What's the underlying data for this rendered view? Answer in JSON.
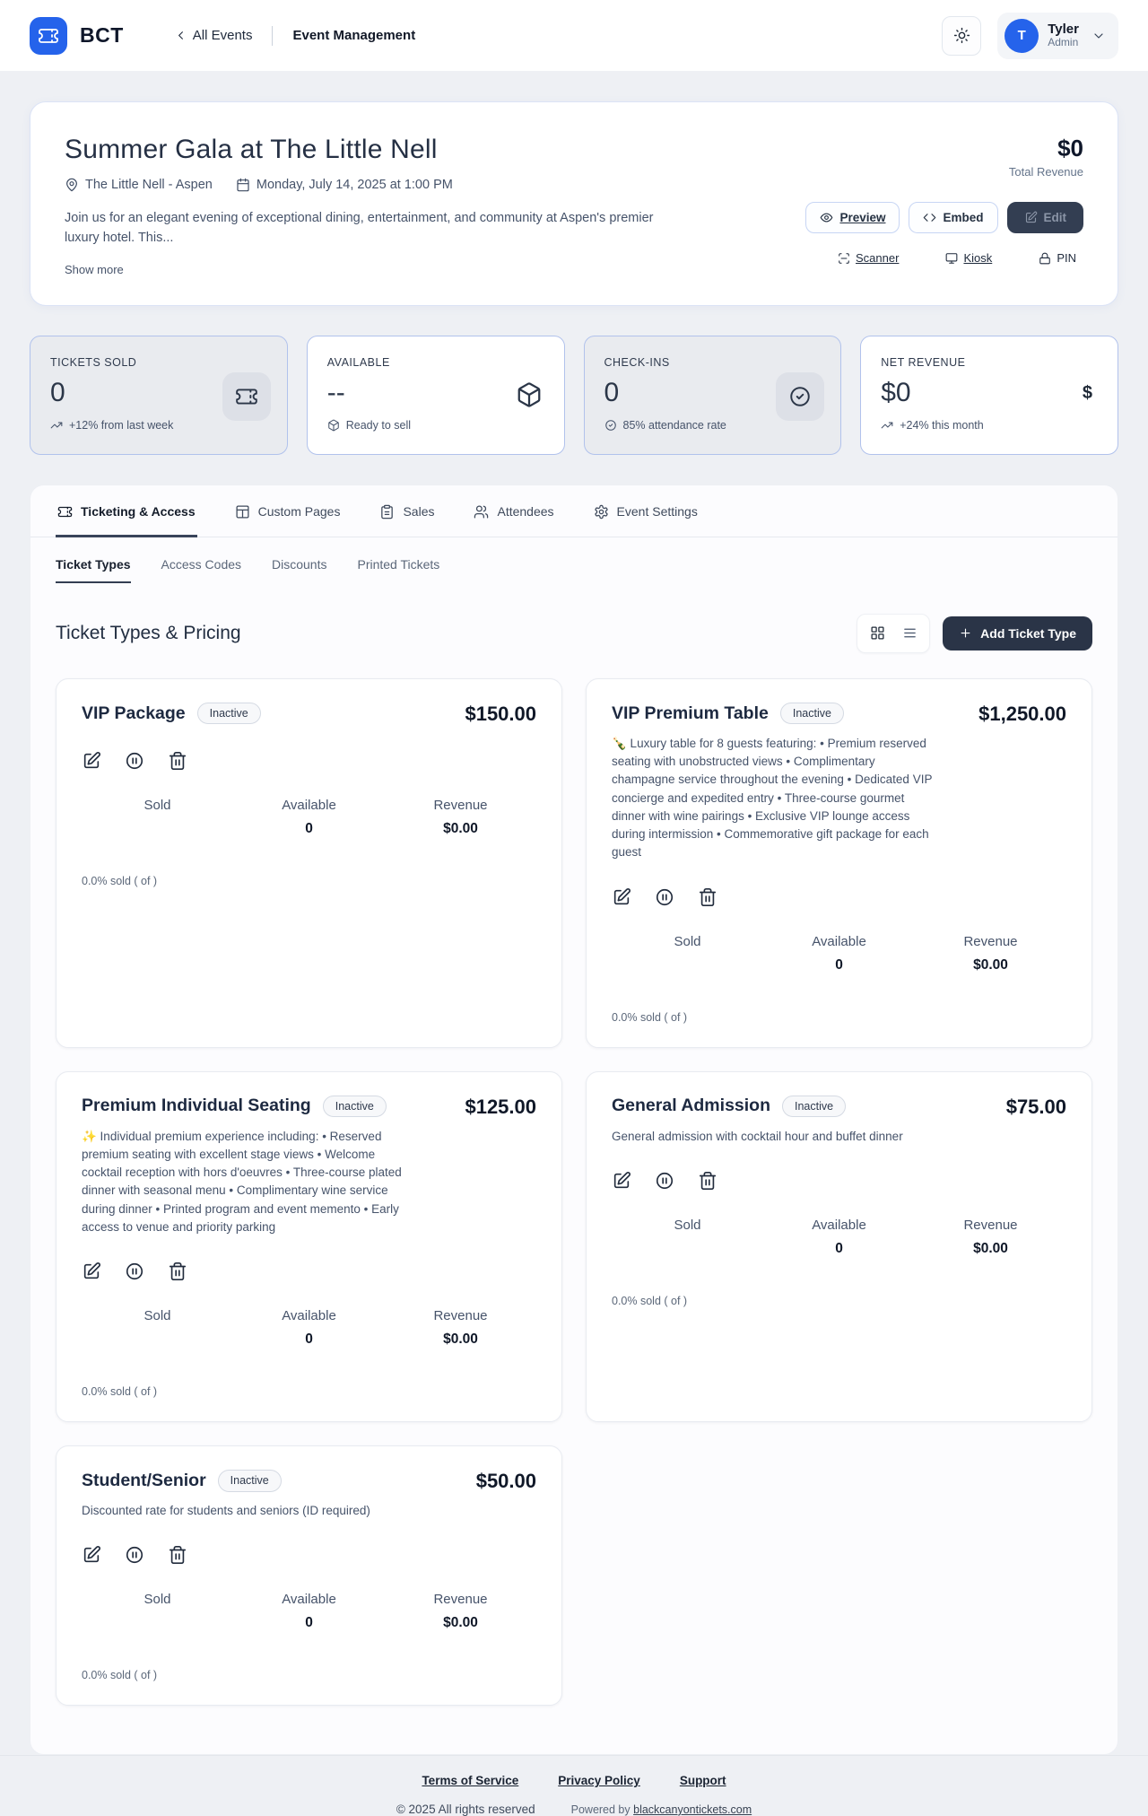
{
  "header": {
    "brand": "BCT",
    "back_label": "All Events",
    "title": "Event Management",
    "user": {
      "initial": "T",
      "name": "Tyler",
      "role": "Admin"
    }
  },
  "event": {
    "title": "Summer Gala at The Little Nell",
    "venue": "The Little Nell - Aspen",
    "datetime": "Monday, July 14, 2025 at 1:00 PM",
    "description": "Join us for an elegant evening of exceptional dining, entertainment, and community at Aspen's premier luxury hotel. This...",
    "show_more": "Show more",
    "total_revenue_value": "$0",
    "total_revenue_label": "Total Revenue",
    "actions": {
      "preview": "Preview",
      "embed": "Embed",
      "edit": "Edit",
      "scanner": "Scanner",
      "kiosk": "Kiosk",
      "pin": "PIN"
    }
  },
  "stats": [
    {
      "label": "TICKETS SOLD",
      "value": "0",
      "sub": "+12% from last week",
      "icon": "ticket-icon"
    },
    {
      "label": "AVAILABLE",
      "value": "--",
      "sub": "Ready to sell",
      "icon": "box-icon"
    },
    {
      "label": "CHECK-INS",
      "value": "0",
      "sub": "85% attendance rate",
      "icon": "check-circle-icon"
    },
    {
      "label": "NET REVENUE",
      "value": "$0",
      "sub": "+24% this month",
      "icon": "dollar-icon"
    }
  ],
  "tabs": [
    {
      "label": "Ticketing & Access",
      "icon": "ticket-icon",
      "active": true
    },
    {
      "label": "Custom Pages",
      "icon": "layout-icon",
      "active": false
    },
    {
      "label": "Sales",
      "icon": "clipboard-icon",
      "active": false
    },
    {
      "label": "Attendees",
      "icon": "users-icon",
      "active": false
    },
    {
      "label": "Event Settings",
      "icon": "gear-icon",
      "active": false
    }
  ],
  "subtabs": [
    {
      "label": "Ticket Types",
      "active": true
    },
    {
      "label": "Access Codes",
      "active": false
    },
    {
      "label": "Discounts",
      "active": false
    },
    {
      "label": "Printed Tickets",
      "active": false
    }
  ],
  "section": {
    "title": "Ticket Types & Pricing",
    "add_button": "Add Ticket Type"
  },
  "ticket_labels": {
    "sold": "Sold",
    "available": "Available",
    "revenue": "Revenue"
  },
  "tickets": [
    {
      "name": "VIP Package",
      "status": "Inactive",
      "price": "$150.00",
      "description": "",
      "sold": "",
      "available": "0",
      "revenue": "$0.00",
      "percent": "0.0% sold ( of )"
    },
    {
      "name": "VIP Premium Table",
      "status": "Inactive",
      "price": "$1,250.00",
      "description": "🍾 Luxury table for 8 guests featuring: • Premium reserved seating with unobstructed views • Complimentary champagne service throughout the evening • Dedicated VIP concierge and expedited entry • Three-course gourmet dinner with wine pairings • Exclusive VIP lounge access during intermission • Commemorative gift package for each guest",
      "sold": "",
      "available": "0",
      "revenue": "$0.00",
      "percent": "0.0% sold ( of )"
    },
    {
      "name": "Premium Individual Seating",
      "status": "Inactive",
      "price": "$125.00",
      "description": "✨ Individual premium experience including: • Reserved premium seating with excellent stage views • Welcome cocktail reception with hors d'oeuvres • Three-course plated dinner with seasonal menu • Complimentary wine service during dinner • Printed program and event memento • Early access to venue and priority parking",
      "sold": "",
      "available": "0",
      "revenue": "$0.00",
      "percent": "0.0% sold ( of )"
    },
    {
      "name": "General Admission",
      "status": "Inactive",
      "price": "$75.00",
      "description": "General admission with cocktail hour and buffet dinner",
      "sold": "",
      "available": "0",
      "revenue": "$0.00",
      "percent": "0.0% sold ( of )"
    },
    {
      "name": "Student/Senior",
      "status": "Inactive",
      "price": "$50.00",
      "description": "Discounted rate for students and seniors (ID required)",
      "sold": "",
      "available": "0",
      "revenue": "$0.00",
      "percent": "0.0% sold ( of )"
    }
  ],
  "footer": {
    "links": [
      "Terms of Service",
      "Privacy Policy",
      "Support"
    ],
    "copyright": "© 2025 All rights reserved",
    "powered_prefix": "Powered by",
    "powered_link": "blackcanyontickets.com"
  }
}
